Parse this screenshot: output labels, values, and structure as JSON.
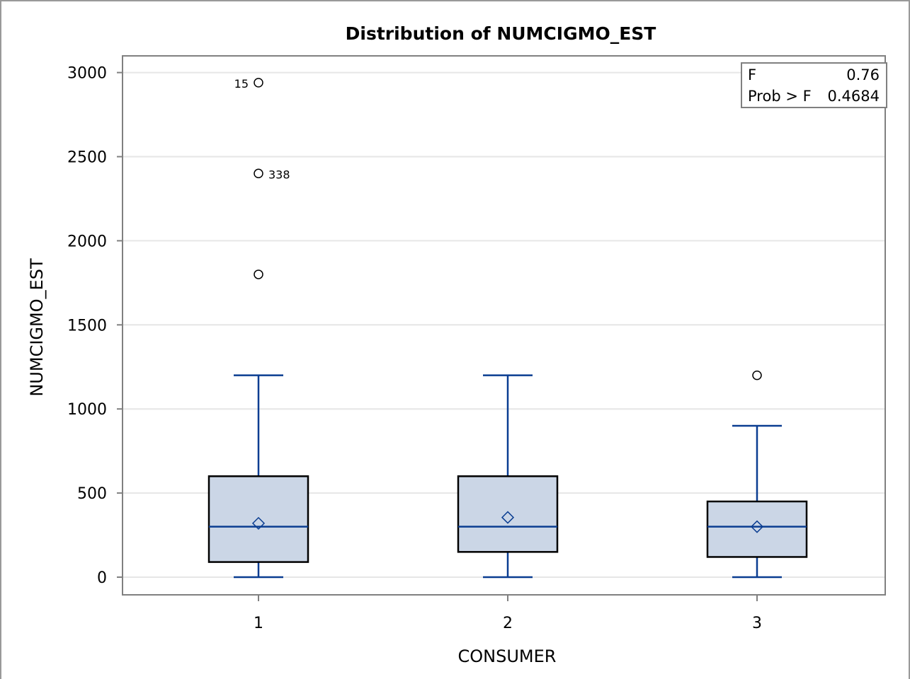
{
  "chart_data": {
    "type": "boxplot",
    "title": "Distribution of NUMCIGMO_EST",
    "xlabel": "CONSUMER",
    "ylabel": "NUMCIGMO_EST",
    "categories": [
      "1",
      "2",
      "3"
    ],
    "ylim": [
      -100,
      3110
    ],
    "yticks": [
      0,
      500,
      1000,
      1500,
      2000,
      2500,
      3000
    ],
    "grid": true,
    "boxes": [
      {
        "category": "1",
        "whisker_low": 0,
        "q1": 90,
        "median": 300,
        "q3": 600,
        "whisker_high": 1200,
        "mean": 320,
        "outliers": [
          {
            "value": 2940,
            "label": "15"
          },
          {
            "value": 2400,
            "label": "338"
          },
          {
            "value": 1800,
            "label": ""
          }
        ]
      },
      {
        "category": "2",
        "whisker_low": 0,
        "q1": 150,
        "median": 300,
        "q3": 600,
        "whisker_high": 1200,
        "mean": 355,
        "outliers": []
      },
      {
        "category": "3",
        "whisker_low": 0,
        "q1": 120,
        "median": 300,
        "q3": 450,
        "whisker_high": 900,
        "mean": 300,
        "outliers": [
          {
            "value": 1200,
            "label": ""
          }
        ]
      }
    ],
    "stats_box": {
      "placement": "top-right",
      "rows": [
        {
          "label": "F",
          "value": "0.76"
        },
        {
          "label": "Prob > F",
          "value": "0.4684"
        }
      ]
    },
    "colors": {
      "box_fill": "#cbd6e6",
      "box_stroke": "#000000",
      "line": "#0a3d91",
      "grid": "#e6e6e6",
      "axis": "#808080"
    }
  }
}
